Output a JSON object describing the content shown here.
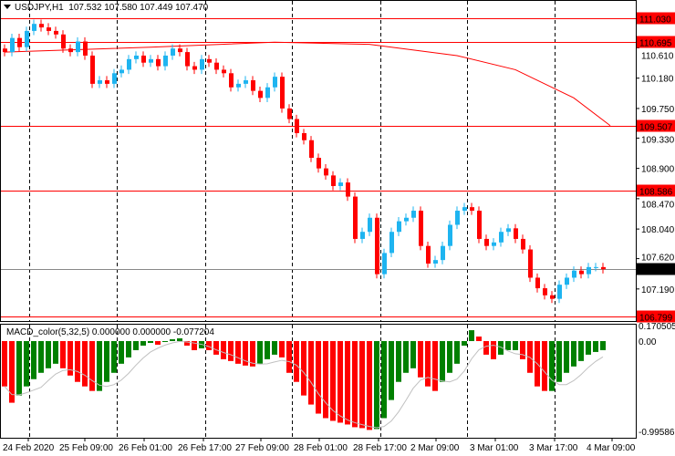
{
  "header": {
    "symbol": "USDJPY,H1",
    "ohlc": "107.532 107.580 107.449 107.470"
  },
  "macd_header": {
    "label": "MACD_color(5,32,5) 0.000000 0.000000 -0.077204"
  },
  "colors": {
    "bull": "#1eb4f0",
    "bear": "#ff0000",
    "ma": "#ff0000",
    "level": "#ff0000",
    "current": "#888888",
    "hist_up": "#008000",
    "hist_down": "#ff0000",
    "signal": "#c0c0c0"
  },
  "chart_data": [
    {
      "type": "candlestick",
      "title": "USDJPY,H1",
      "ylim": [
        106.76,
        111.03
      ],
      "y_ticks": [
        "110.610",
        "110.180",
        "109.750",
        "109.330",
        "108.900",
        "108.470",
        "108.040",
        "107.620",
        "107.190"
      ],
      "x_ticks": [
        "24 Feb 2020",
        "25 Feb 09:00",
        "26 Feb 01:00",
        "26 Feb 17:00",
        "27 Feb 09:00",
        "28 Feb 01:00",
        "28 Feb 17:00",
        "2 Mar 09:00",
        "3 Mar 01:00",
        "3 Mar 17:00",
        "4 Mar 09:00"
      ],
      "closes": [
        110.55,
        110.75,
        110.62,
        110.85,
        110.95,
        110.9,
        110.85,
        110.8,
        110.6,
        110.55,
        110.7,
        110.5,
        110.1,
        110.15,
        110.1,
        110.25,
        110.3,
        110.45,
        110.5,
        110.4,
        110.45,
        110.35,
        110.5,
        110.6,
        110.55,
        110.35,
        110.3,
        110.45,
        110.4,
        110.3,
        110.25,
        110.05,
        110.1,
        110.15,
        110.0,
        109.9,
        110.05,
        110.2,
        109.75,
        109.6,
        109.4,
        109.3,
        109.05,
        108.9,
        108.8,
        108.65,
        108.7,
        108.5,
        107.9,
        108.0,
        108.2,
        107.4,
        107.7,
        108.0,
        108.15,
        108.2,
        108.3,
        107.8,
        107.55,
        107.6,
        107.8,
        108.1,
        108.3,
        108.35,
        108.3,
        107.9,
        107.8,
        107.85,
        108.0,
        108.05,
        107.9,
        107.75,
        107.35,
        107.2,
        107.1,
        107.05,
        107.25,
        107.35,
        107.45,
        107.4,
        107.5,
        107.5,
        107.47
      ],
      "moving_average": [
        [
          0,
          110.55
        ],
        [
          20,
          110.62
        ],
        [
          37,
          110.69
        ],
        [
          50,
          110.66
        ],
        [
          62,
          110.5
        ],
        [
          70,
          110.3
        ],
        [
          78,
          109.9
        ],
        [
          83,
          109.507
        ]
      ],
      "levels": [
        {
          "price": "111.030",
          "kind": "resistance"
        },
        {
          "price": "110.695",
          "kind": "resistance"
        },
        {
          "price": "109.507",
          "kind": "resistance"
        },
        {
          "price": "108.586",
          "kind": "resistance"
        },
        {
          "price": "106.799",
          "kind": "support"
        }
      ],
      "current_price": "107.470"
    },
    {
      "type": "bar",
      "title": "MACD_color(5,32,5)",
      "ylim": [
        -0.99586,
        0.170505
      ],
      "y_ticks": [
        "0.170505",
        "0.00",
        "-0.99586"
      ],
      "histogram": [
        -0.5,
        -0.68,
        -0.6,
        -0.5,
        -0.42,
        -0.35,
        -0.3,
        -0.25,
        -0.3,
        -0.38,
        -0.45,
        -0.5,
        -0.55,
        -0.55,
        -0.45,
        -0.35,
        -0.25,
        -0.18,
        -0.1,
        -0.05,
        -0.02,
        -0.04,
        -0.01,
        0.02,
        0.03,
        -0.05,
        -0.1,
        -0.08,
        -0.1,
        -0.15,
        -0.2,
        -0.22,
        -0.25,
        -0.27,
        -0.28,
        -0.25,
        -0.2,
        -0.15,
        -0.18,
        -0.35,
        -0.45,
        -0.6,
        -0.7,
        -0.8,
        -0.85,
        -0.88,
        -0.9,
        -0.92,
        -0.95,
        -0.96,
        -0.98,
        -0.97,
        -0.85,
        -0.65,
        -0.45,
        -0.35,
        -0.3,
        -0.4,
        -0.5,
        -0.55,
        -0.45,
        -0.35,
        -0.25,
        -0.05,
        0.12,
        0.05,
        -0.15,
        -0.2,
        -0.15,
        -0.1,
        -0.1,
        -0.2,
        -0.35,
        -0.5,
        -0.55,
        -0.55,
        -0.45,
        -0.35,
        -0.28,
        -0.22,
        -0.15,
        -0.12,
        -0.1
      ]
    }
  ]
}
